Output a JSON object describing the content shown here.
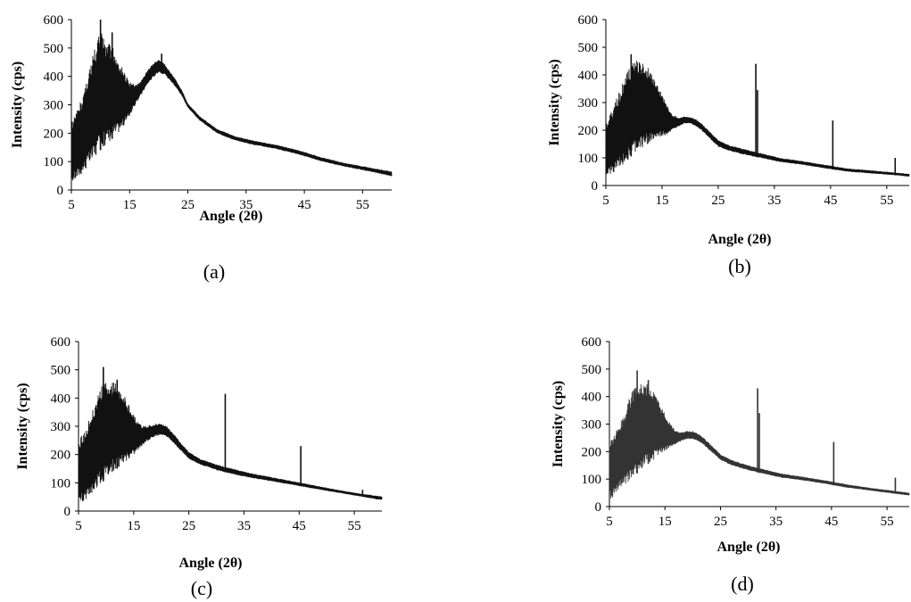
{
  "chart_data": [
    {
      "type": "line",
      "caption": "(a)",
      "xlabel": "Angle (2θ)",
      "ylabel": "Intensity (cps)",
      "xlim": [
        5,
        60
      ],
      "ylim": [
        0,
        600
      ],
      "xticks": [
        5,
        15,
        25,
        35,
        45,
        55
      ],
      "yticks": [
        0,
        100,
        200,
        300,
        400,
        500,
        600
      ],
      "grid": false,
      "color": "#111111",
      "series": [
        {
          "upper": [
            [
              5,
              240
            ],
            [
              6,
              280
            ],
            [
              7,
              340
            ],
            [
              8,
              420
            ],
            [
              9,
              500
            ],
            [
              10,
              560
            ],
            [
              11,
              520
            ],
            [
              12,
              510
            ],
            [
              13,
              460
            ],
            [
              14,
              420
            ],
            [
              15,
              380
            ],
            [
              16,
              370
            ],
            [
              17,
              385
            ],
            [
              18,
              420
            ],
            [
              19,
              445
            ],
            [
              20,
              460
            ],
            [
              21,
              445
            ],
            [
              22,
              415
            ],
            [
              23,
              385
            ],
            [
              24,
              350
            ],
            [
              25,
              305
            ],
            [
              27,
              260
            ],
            [
              30,
              215
            ],
            [
              33,
              190
            ],
            [
              36,
              175
            ],
            [
              40,
              160
            ],
            [
              44,
              140
            ],
            [
              48,
              115
            ],
            [
              52,
              95
            ],
            [
              56,
              80
            ],
            [
              60,
              65
            ]
          ],
          "lower": [
            [
              5,
              25
            ],
            [
              6,
              40
            ],
            [
              7,
              60
            ],
            [
              8,
              85
            ],
            [
              9,
              110
            ],
            [
              10,
              140
            ],
            [
              11,
              160
            ],
            [
              12,
              180
            ],
            [
              13,
              200
            ],
            [
              14,
              225
            ],
            [
              15,
              260
            ],
            [
              16,
              300
            ],
            [
              17,
              335
            ],
            [
              18,
              370
            ],
            [
              19,
              395
            ],
            [
              20,
              415
            ],
            [
              21,
              405
            ],
            [
              22,
              385
            ],
            [
              23,
              360
            ],
            [
              24,
              330
            ],
            [
              25,
              290
            ],
            [
              27,
              245
            ],
            [
              30,
              200
            ],
            [
              33,
              175
            ],
            [
              36,
              160
            ],
            [
              40,
              145
            ],
            [
              44,
              125
            ],
            [
              48,
              100
            ],
            [
              52,
              82
            ],
            [
              56,
              66
            ],
            [
              60,
              48
            ]
          ],
          "peaks": [
            [
              10,
              600
            ],
            [
              12,
              555
            ],
            [
              20.5,
              480
            ]
          ]
        }
      ]
    },
    {
      "type": "line",
      "caption": "(b)",
      "xlabel": "Angle (2θ)",
      "ylabel": "Intensity (cps)",
      "xlim": [
        5,
        59
      ],
      "ylim": [
        0,
        600
      ],
      "xticks": [
        5,
        15,
        25,
        35,
        45,
        55
      ],
      "yticks": [
        0,
        100,
        200,
        300,
        400,
        500,
        600
      ],
      "grid": false,
      "color": "#111111",
      "series": [
        {
          "upper": [
            [
              5,
              230
            ],
            [
              6,
              270
            ],
            [
              7,
              320
            ],
            [
              8,
              370
            ],
            [
              9,
              420
            ],
            [
              10,
              450
            ],
            [
              11,
              455
            ],
            [
              12,
              440
            ],
            [
              13,
              410
            ],
            [
              14,
              370
            ],
            [
              15,
              330
            ],
            [
              16,
              285
            ],
            [
              17,
              255
            ],
            [
              18,
              245
            ],
            [
              19,
              250
            ],
            [
              20,
              248
            ],
            [
              21,
              240
            ],
            [
              22,
              225
            ],
            [
              23,
              205
            ],
            [
              24,
              185
            ],
            [
              25,
              165
            ],
            [
              27,
              145
            ],
            [
              30,
              130
            ],
            [
              33,
              115
            ],
            [
              36,
              100
            ],
            [
              40,
              88
            ],
            [
              44,
              75
            ],
            [
              48,
              62
            ],
            [
              52,
              55
            ],
            [
              56,
              48
            ],
            [
              59,
              42
            ]
          ],
          "lower": [
            [
              5,
              25
            ],
            [
              6,
              40
            ],
            [
              7,
              55
            ],
            [
              8,
              75
            ],
            [
              9,
              95
            ],
            [
              10,
              115
            ],
            [
              11,
              130
            ],
            [
              12,
              145
            ],
            [
              13,
              155
            ],
            [
              14,
              165
            ],
            [
              15,
              175
            ],
            [
              16,
              185
            ],
            [
              17,
              200
            ],
            [
              18,
              215
            ],
            [
              19,
              225
            ],
            [
              20,
              225
            ],
            [
              21,
              215
            ],
            [
              22,
              200
            ],
            [
              23,
              180
            ],
            [
              24,
              160
            ],
            [
              25,
              140
            ],
            [
              27,
              125
            ],
            [
              30,
              110
            ],
            [
              33,
              98
            ],
            [
              36,
              85
            ],
            [
              40,
              75
            ],
            [
              44,
              62
            ],
            [
              48,
              50
            ],
            [
              52,
              44
            ],
            [
              56,
              38
            ],
            [
              59,
              32
            ]
          ],
          "peaks": [
            [
              9.5,
              475
            ],
            [
              31.7,
              440
            ],
            [
              32,
              345
            ],
            [
              45.4,
              235
            ],
            [
              56.5,
              100
            ]
          ]
        }
      ]
    },
    {
      "type": "line",
      "caption": "(c)",
      "xlabel": "Angle (2θ)",
      "ylabel": "Intensity (cps)",
      "xlim": [
        5,
        60
      ],
      "ylim": [
        0,
        600
      ],
      "xticks": [
        5,
        15,
        25,
        35,
        45,
        55
      ],
      "yticks": [
        0,
        100,
        200,
        300,
        400,
        500,
        600
      ],
      "grid": false,
      "color": "#111111",
      "series": [
        {
          "upper": [
            [
              5,
              250
            ],
            [
              6,
              280
            ],
            [
              7,
              330
            ],
            [
              8,
              380
            ],
            [
              9,
              440
            ],
            [
              10,
              460
            ],
            [
              11,
              460
            ],
            [
              12,
              450
            ],
            [
              13,
              420
            ],
            [
              14,
              380
            ],
            [
              15,
              340
            ],
            [
              16,
              310
            ],
            [
              17,
              300
            ],
            [
              18,
              305
            ],
            [
              19,
              310
            ],
            [
              20,
              310
            ],
            [
              21,
              300
            ],
            [
              22,
              280
            ],
            [
              23,
              255
            ],
            [
              24,
              230
            ],
            [
              25,
              210
            ],
            [
              27,
              185
            ],
            [
              30,
              165
            ],
            [
              33,
              150
            ],
            [
              36,
              135
            ],
            [
              40,
              120
            ],
            [
              44,
              105
            ],
            [
              48,
              90
            ],
            [
              52,
              75
            ],
            [
              56,
              62
            ],
            [
              60,
              52
            ]
          ],
          "lower": [
            [
              5,
              20
            ],
            [
              6,
              35
            ],
            [
              7,
              55
            ],
            [
              8,
              75
            ],
            [
              9,
              95
            ],
            [
              10,
              115
            ],
            [
              11,
              135
            ],
            [
              12,
              150
            ],
            [
              13,
              165
            ],
            [
              14,
              180
            ],
            [
              15,
              200
            ],
            [
              16,
              220
            ],
            [
              17,
              240
            ],
            [
              18,
              255
            ],
            [
              19,
              265
            ],
            [
              20,
              270
            ],
            [
              21,
              262
            ],
            [
              22,
              245
            ],
            [
              23,
              225
            ],
            [
              24,
              205
            ],
            [
              25,
              185
            ],
            [
              27,
              165
            ],
            [
              30,
              145
            ],
            [
              33,
              130
            ],
            [
              36,
              118
            ],
            [
              40,
              105
            ],
            [
              44,
              92
            ],
            [
              48,
              78
            ],
            [
              52,
              65
            ],
            [
              56,
              52
            ],
            [
              60,
              38
            ]
          ],
          "peaks": [
            [
              9.5,
              510
            ],
            [
              12,
              465
            ],
            [
              31.6,
              415
            ],
            [
              45.3,
              230
            ],
            [
              56.5,
              75
            ]
          ]
        }
      ]
    },
    {
      "type": "line",
      "caption": "(d)",
      "xlabel": "Angle (2θ)",
      "ylabel": "Intensity (cps)",
      "xlim": [
        5,
        59
      ],
      "ylim": [
        0,
        600
      ],
      "xticks": [
        5,
        15,
        25,
        35,
        45,
        55
      ],
      "yticks": [
        0,
        100,
        200,
        300,
        400,
        500,
        600
      ],
      "grid": false,
      "color": "#333333",
      "series": [
        {
          "upper": [
            [
              5,
              240
            ],
            [
              6,
              270
            ],
            [
              7,
              310
            ],
            [
              8,
              360
            ],
            [
              9,
              420
            ],
            [
              10,
              440
            ],
            [
              11,
              450
            ],
            [
              12,
              445
            ],
            [
              13,
              420
            ],
            [
              14,
              380
            ],
            [
              15,
              340
            ],
            [
              16,
              300
            ],
            [
              17,
              275
            ],
            [
              18,
              270
            ],
            [
              19,
              275
            ],
            [
              20,
              275
            ],
            [
              21,
              265
            ],
            [
              22,
              250
            ],
            [
              23,
              230
            ],
            [
              24,
              210
            ],
            [
              25,
              190
            ],
            [
              27,
              170
            ],
            [
              30,
              150
            ],
            [
              33,
              135
            ],
            [
              36,
              120
            ],
            [
              40,
              108
            ],
            [
              44,
              95
            ],
            [
              48,
              80
            ],
            [
              52,
              68
            ],
            [
              56,
              58
            ],
            [
              59,
              50
            ]
          ],
          "lower": [
            [
              5,
              25
            ],
            [
              6,
              40
            ],
            [
              7,
              60
            ],
            [
              8,
              80
            ],
            [
              9,
              100
            ],
            [
              10,
              120
            ],
            [
              11,
              140
            ],
            [
              12,
              155
            ],
            [
              13,
              170
            ],
            [
              14,
              185
            ],
            [
              15,
              200
            ],
            [
              16,
              215
            ],
            [
              17,
              228
            ],
            [
              18,
              238
            ],
            [
              19,
              245
            ],
            [
              20,
              245
            ],
            [
              21,
              238
            ],
            [
              22,
              225
            ],
            [
              23,
              205
            ],
            [
              24,
              188
            ],
            [
              25,
              170
            ],
            [
              27,
              150
            ],
            [
              30,
              132
            ],
            [
              33,
              118
            ],
            [
              36,
              105
            ],
            [
              40,
              95
            ],
            [
              44,
              82
            ],
            [
              48,
              68
            ],
            [
              52,
              58
            ],
            [
              56,
              48
            ],
            [
              59,
              40
            ]
          ],
          "peaks": [
            [
              10,
              495
            ],
            [
              12,
              460
            ],
            [
              31.7,
              430
            ],
            [
              32,
              340
            ],
            [
              45.4,
              235
            ],
            [
              56.5,
              105
            ]
          ]
        }
      ]
    }
  ]
}
